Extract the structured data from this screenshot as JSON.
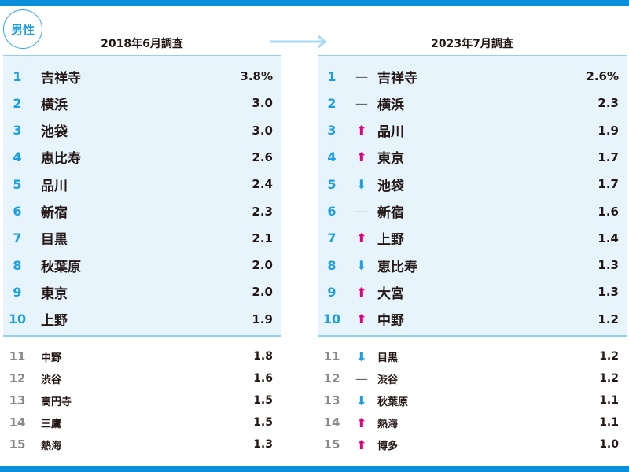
{
  "badge": "男性",
  "left": {
    "title": "2018年6月調査",
    "rows": [
      {
        "rank": "1",
        "name": "吉祥寺",
        "value": "3.8%"
      },
      {
        "rank": "2",
        "name": "横浜",
        "value": "3.0"
      },
      {
        "rank": "3",
        "name": "池袋",
        "value": "3.0"
      },
      {
        "rank": "4",
        "name": "恵比寿",
        "value": "2.6"
      },
      {
        "rank": "5",
        "name": "品川",
        "value": "2.4"
      },
      {
        "rank": "6",
        "name": "新宿",
        "value": "2.3"
      },
      {
        "rank": "7",
        "name": "目黒",
        "value": "2.1"
      },
      {
        "rank": "8",
        "name": "秋葉原",
        "value": "2.0"
      },
      {
        "rank": "9",
        "name": "東京",
        "value": "2.0"
      },
      {
        "rank": "10",
        "name": "上野",
        "value": "1.9"
      },
      {
        "rank": "11",
        "name": "中野",
        "value": "1.8"
      },
      {
        "rank": "12",
        "name": "渋谷",
        "value": "1.6"
      },
      {
        "rank": "13",
        "name": "高円寺",
        "value": "1.5"
      },
      {
        "rank": "14",
        "name": "三鷹",
        "value": "1.5"
      },
      {
        "rank": "15",
        "name": "熱海",
        "value": "1.3"
      }
    ]
  },
  "right": {
    "title": "2023年7月調査",
    "rows": [
      {
        "rank": "1",
        "trend": "same",
        "name": "吉祥寺",
        "value": "2.6%"
      },
      {
        "rank": "2",
        "trend": "same",
        "name": "横浜",
        "value": "2.3"
      },
      {
        "rank": "3",
        "trend": "up",
        "name": "品川",
        "value": "1.9"
      },
      {
        "rank": "4",
        "trend": "up",
        "name": "東京",
        "value": "1.7"
      },
      {
        "rank": "5",
        "trend": "down",
        "name": "池袋",
        "value": "1.7"
      },
      {
        "rank": "6",
        "trend": "same",
        "name": "新宿",
        "value": "1.6"
      },
      {
        "rank": "7",
        "trend": "up",
        "name": "上野",
        "value": "1.4"
      },
      {
        "rank": "8",
        "trend": "down",
        "name": "恵比寿",
        "value": "1.3"
      },
      {
        "rank": "9",
        "trend": "up",
        "name": "大宮",
        "value": "1.3"
      },
      {
        "rank": "10",
        "trend": "up",
        "name": "中野",
        "value": "1.2"
      },
      {
        "rank": "11",
        "trend": "down",
        "name": "目黒",
        "value": "1.2"
      },
      {
        "rank": "12",
        "trend": "same",
        "name": "渋谷",
        "value": "1.2"
      },
      {
        "rank": "13",
        "trend": "down",
        "name": "秋葉原",
        "value": "1.1"
      },
      {
        "rank": "14",
        "trend": "up",
        "name": "熱海",
        "value": "1.1"
      },
      {
        "rank": "15",
        "trend": "up",
        "name": "博多",
        "value": "1.0"
      }
    ]
  },
  "colors": {
    "accent": "#1a9fe3",
    "up": "#e4007f",
    "down": "#1a9fe3",
    "panel_bg": "#e8f4fc"
  }
}
